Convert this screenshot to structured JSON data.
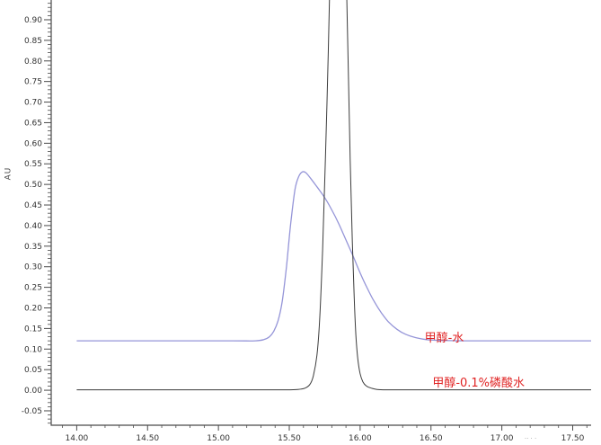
{
  "page": {
    "background": "#ffffff"
  },
  "chart_data": {
    "type": "line",
    "title": "",
    "legend_position": "none",
    "grid": false,
    "y_axis": {
      "title": "AU",
      "min": -0.085,
      "max": 0.948,
      "major_tick_labels": [
        "0.90",
        "0.85",
        "0.80",
        "0.75",
        "0.70",
        "0.65",
        "0.60",
        "0.55",
        "0.50",
        "0.45",
        "0.40",
        "0.35",
        "0.30",
        "0.25",
        "0.20",
        "0.15",
        "0.10",
        "0.05",
        "0.00",
        "-0.05"
      ],
      "major_step": 0.05,
      "minor_step": 0.01
    },
    "x_axis": {
      "title": "",
      "min": 13.82,
      "max": 17.63,
      "major_tick_labels": [
        "14.00",
        "14.50",
        "15.00",
        "15.50",
        "16.00",
        "16.50",
        "17.00",
        "17.50"
      ],
      "major_step": 0.5,
      "minor_step": 0.1
    },
    "series": [
      {
        "name": "甲醇-水",
        "color": "#9595d8",
        "stroke_width": 1.3,
        "baseline": 0.12,
        "peak_apex_x": 15.59,
        "peak_apex_y": 0.53,
        "points": [
          [
            14.0,
            0.12
          ],
          [
            14.6,
            0.12
          ],
          [
            15.1,
            0.12
          ],
          [
            15.26,
            0.12
          ],
          [
            15.32,
            0.123
          ],
          [
            15.36,
            0.13
          ],
          [
            15.39,
            0.143
          ],
          [
            15.42,
            0.168
          ],
          [
            15.45,
            0.215
          ],
          [
            15.48,
            0.3
          ],
          [
            15.51,
            0.405
          ],
          [
            15.54,
            0.487
          ],
          [
            15.565,
            0.518
          ],
          [
            15.59,
            0.53
          ],
          [
            15.615,
            0.529
          ],
          [
            15.65,
            0.515
          ],
          [
            15.7,
            0.492
          ],
          [
            15.75,
            0.468
          ],
          [
            15.8,
            0.438
          ],
          [
            15.85,
            0.404
          ],
          [
            15.9,
            0.365
          ],
          [
            15.95,
            0.326
          ],
          [
            16.0,
            0.285
          ],
          [
            16.05,
            0.248
          ],
          [
            16.1,
            0.215
          ],
          [
            16.15,
            0.188
          ],
          [
            16.2,
            0.166
          ],
          [
            16.26,
            0.148
          ],
          [
            16.32,
            0.136
          ],
          [
            16.39,
            0.128
          ],
          [
            16.47,
            0.123
          ],
          [
            16.57,
            0.121
          ],
          [
            16.75,
            0.12
          ],
          [
            17.2,
            0.12
          ],
          [
            17.63,
            0.12
          ]
        ]
      },
      {
        "name": "甲醇-0.1%磷酸水",
        "color": "#3c3c3c",
        "stroke_width": 1.0,
        "baseline": 0.0,
        "peak_apex_x": 15.85,
        "peak_apex_y": "off-scale (>0.95)",
        "points": [
          [
            14.0,
            0.001
          ],
          [
            14.6,
            0.001
          ],
          [
            15.2,
            0.001
          ],
          [
            15.48,
            0.001
          ],
          [
            15.56,
            0.002
          ],
          [
            15.61,
            0.005
          ],
          [
            15.645,
            0.014
          ],
          [
            15.67,
            0.035
          ],
          [
            15.695,
            0.085
          ],
          [
            15.715,
            0.175
          ],
          [
            15.735,
            0.34
          ],
          [
            15.755,
            0.56
          ],
          [
            15.775,
            0.82
          ],
          [
            15.79,
            1.05
          ],
          [
            15.8,
            1.25
          ],
          [
            15.89,
            1.25
          ],
          [
            15.9,
            1.05
          ],
          [
            15.915,
            0.8
          ],
          [
            15.93,
            0.56
          ],
          [
            15.945,
            0.36
          ],
          [
            15.958,
            0.225
          ],
          [
            15.97,
            0.135
          ],
          [
            15.983,
            0.078
          ],
          [
            16.0,
            0.04
          ],
          [
            16.02,
            0.02
          ],
          [
            16.045,
            0.01
          ],
          [
            16.08,
            0.005
          ],
          [
            16.12,
            0.002
          ],
          [
            16.19,
            0.001
          ],
          [
            16.4,
            0.001
          ],
          [
            17.0,
            0.001
          ],
          [
            17.63,
            0.001
          ]
        ]
      }
    ],
    "annotations": [
      {
        "text": "甲醇-水",
        "color": "#e02222",
        "m": 16.455,
        "v": 0.14,
        "font_px": 13
      },
      {
        "text": "甲醇-0.1%磷酸水",
        "color": "#e02222",
        "m": 16.51,
        "v": 0.03,
        "font_px": 13
      },
      {
        "text": ".. . .",
        "color": "#9a9a9a",
        "m": 17.16,
        "v": -0.106,
        "font_px": 7
      }
    ],
    "colors": {
      "axis": "#4a4a4a",
      "tick_label": "#333333",
      "background": "#ffffff"
    }
  }
}
